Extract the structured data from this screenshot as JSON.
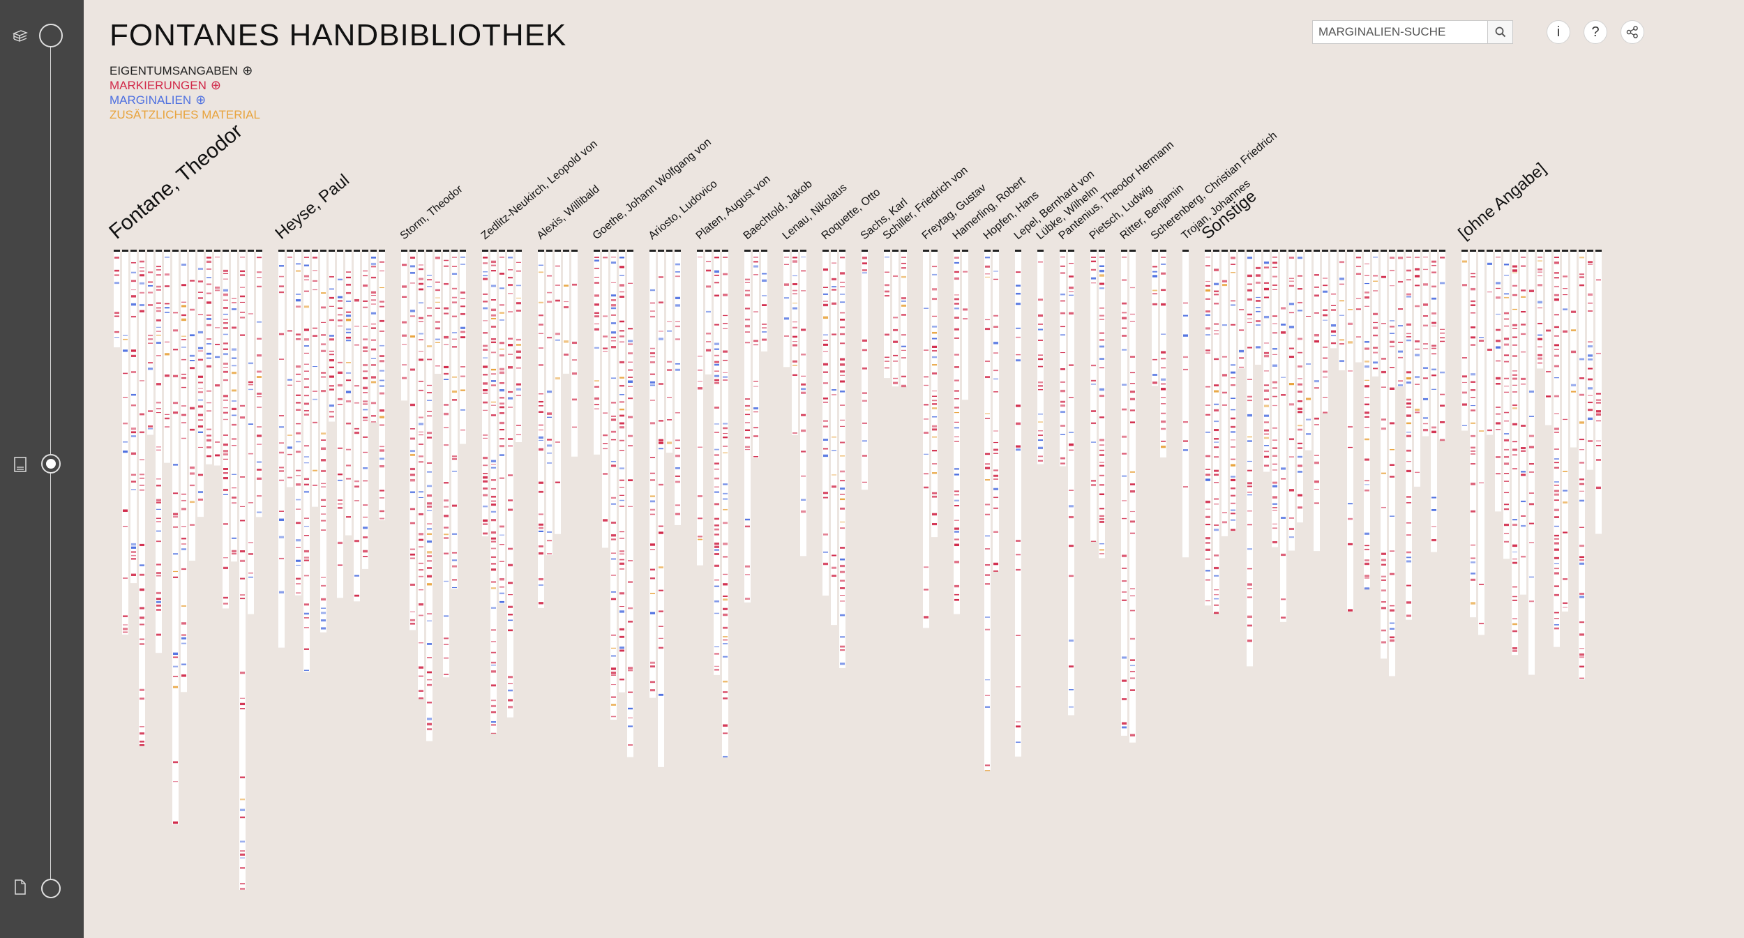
{
  "app": {
    "title": "FONTANES HANDBIBLIOTHEK"
  },
  "legend": {
    "items": [
      {
        "label": "EIGENTUMSANGABEN",
        "color": "#222222",
        "expandable": true
      },
      {
        "label": "MARKIERUNGEN",
        "color": "#d12a4a",
        "expandable": true
      },
      {
        "label": "MARGINALIEN",
        "color": "#4d6fe0",
        "expandable": true
      },
      {
        "label": "ZUSÄTZLICHES MATERIAL",
        "color": "#e8a33c",
        "expandable": false
      }
    ]
  },
  "search": {
    "placeholder": "MARGINALIEN-SUCHE",
    "icon": "search-icon"
  },
  "toolbar": {
    "info": "i",
    "help": "?",
    "share_icon": "share-icon"
  },
  "sidebar": {
    "icons": [
      "library-icon",
      "book-icon",
      "page-icon"
    ],
    "active_index": 1
  },
  "colors": {
    "background": "#ece5e0",
    "sidebar": "#454545",
    "column": "#ffffff",
    "ownership": "#222222",
    "marking": "#d12a4a",
    "marginalia": "#4d6fe0",
    "material": "#e8a33c"
  },
  "authors": [
    {
      "name": "Fontane, Theodor",
      "books": 18,
      "highlight": true
    },
    {
      "name": "Heyse, Paul",
      "books": 13
    },
    {
      "name": "Storm, Theodor",
      "books": 8
    },
    {
      "name": "Zedlitz-Neukirch, Leopold von",
      "books": 5
    },
    {
      "name": "Alexis, Willibald",
      "books": 5
    },
    {
      "name": "Goethe, Johann Wolfgang von",
      "books": 5
    },
    {
      "name": "Ariosto, Ludovico",
      "books": 4
    },
    {
      "name": "Platen, August von",
      "books": 4
    },
    {
      "name": "Baechtold, Jakob",
      "books": 3
    },
    {
      "name": "Lenau, Nikolaus",
      "books": 3
    },
    {
      "name": "Roquette, Otto",
      "books": 3
    },
    {
      "name": "Sachs, Karl",
      "books": 1
    },
    {
      "name": "Schiller, Friedrich von",
      "books": 3
    },
    {
      "name": "Freytag, Gustav",
      "books": 2
    },
    {
      "name": "Hamerling, Robert",
      "books": 2
    },
    {
      "name": "Hopfen, Hans",
      "books": 2
    },
    {
      "name": "Lepel, Bernhard von",
      "books": 1
    },
    {
      "name": "Lübke, Wilhelm",
      "books": 1
    },
    {
      "name": "Pantenius, Theodor Hermann",
      "books": 2
    },
    {
      "name": "Pietsch, Ludwig",
      "books": 2
    },
    {
      "name": "Ritter, Benjamin",
      "books": 2
    },
    {
      "name": "Scherenberg, Christian Friedrich",
      "books": 2
    },
    {
      "name": "Trojan, Johannes",
      "books": 1
    },
    {
      "name": "Sonstige",
      "books": 29
    },
    {
      "name": "[ohne Angabe]",
      "books": 17
    }
  ]
}
